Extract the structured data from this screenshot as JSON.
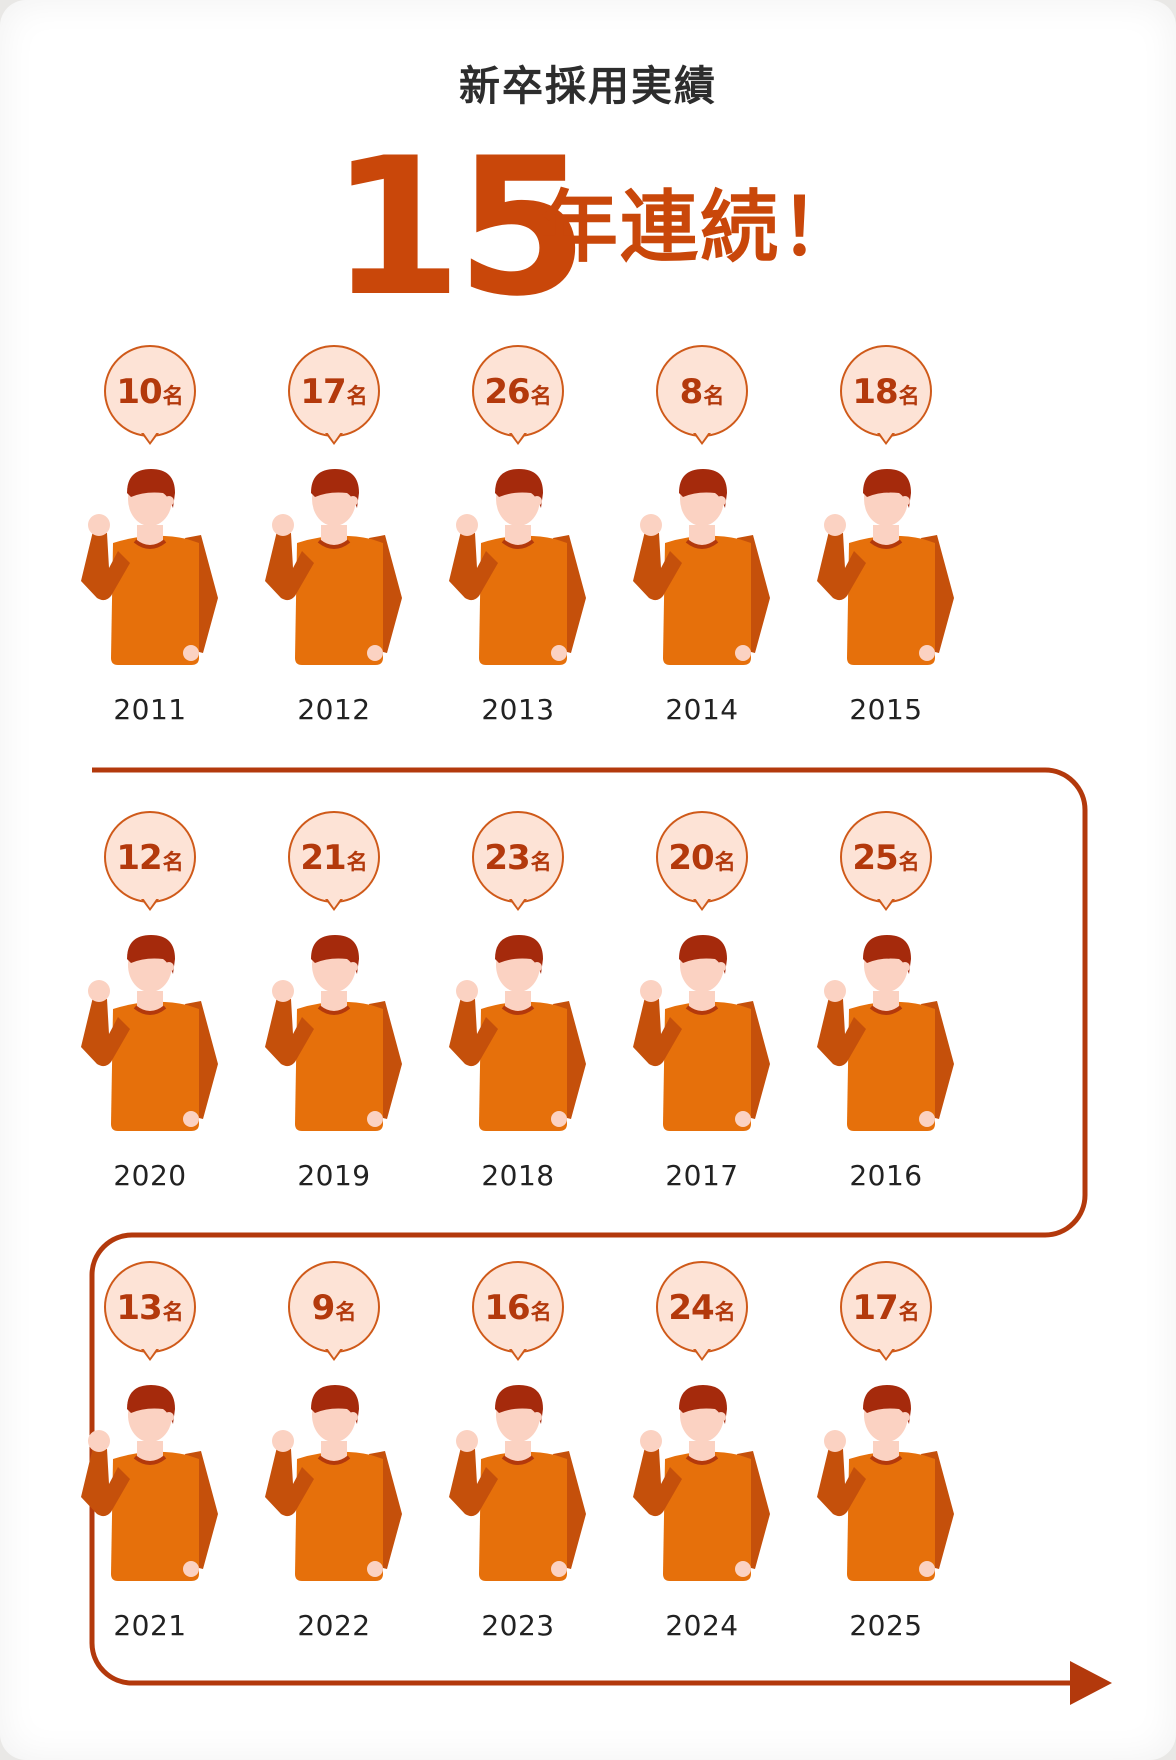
{
  "heading": "新卒採用実績",
  "streak": {
    "number": "15",
    "text": "年連続！"
  },
  "unit": "名",
  "colors": {
    "accent": "#c9470a",
    "path": "#b3390c",
    "bubble_fill": "#fde3d6",
    "shirt": "#e6700b",
    "sleeve": "#c5500b",
    "skin": "#fbd2c2",
    "hair": "#a52a0c"
  },
  "rows": [
    {
      "items": [
        {
          "year": "2011",
          "count": "10"
        },
        {
          "year": "2012",
          "count": "17"
        },
        {
          "year": "2013",
          "count": "26"
        },
        {
          "year": "2014",
          "count": "8"
        },
        {
          "year": "2015",
          "count": "18"
        }
      ]
    },
    {
      "items": [
        {
          "year": "2020",
          "count": "12"
        },
        {
          "year": "2019",
          "count": "21"
        },
        {
          "year": "2018",
          "count": "23"
        },
        {
          "year": "2017",
          "count": "20"
        },
        {
          "year": "2016",
          "count": "25"
        }
      ]
    },
    {
      "items": [
        {
          "year": "2021",
          "count": "13"
        },
        {
          "year": "2022",
          "count": "9"
        },
        {
          "year": "2023",
          "count": "16"
        },
        {
          "year": "2024",
          "count": "24"
        },
        {
          "year": "2025",
          "count": "17"
        }
      ]
    }
  ]
}
